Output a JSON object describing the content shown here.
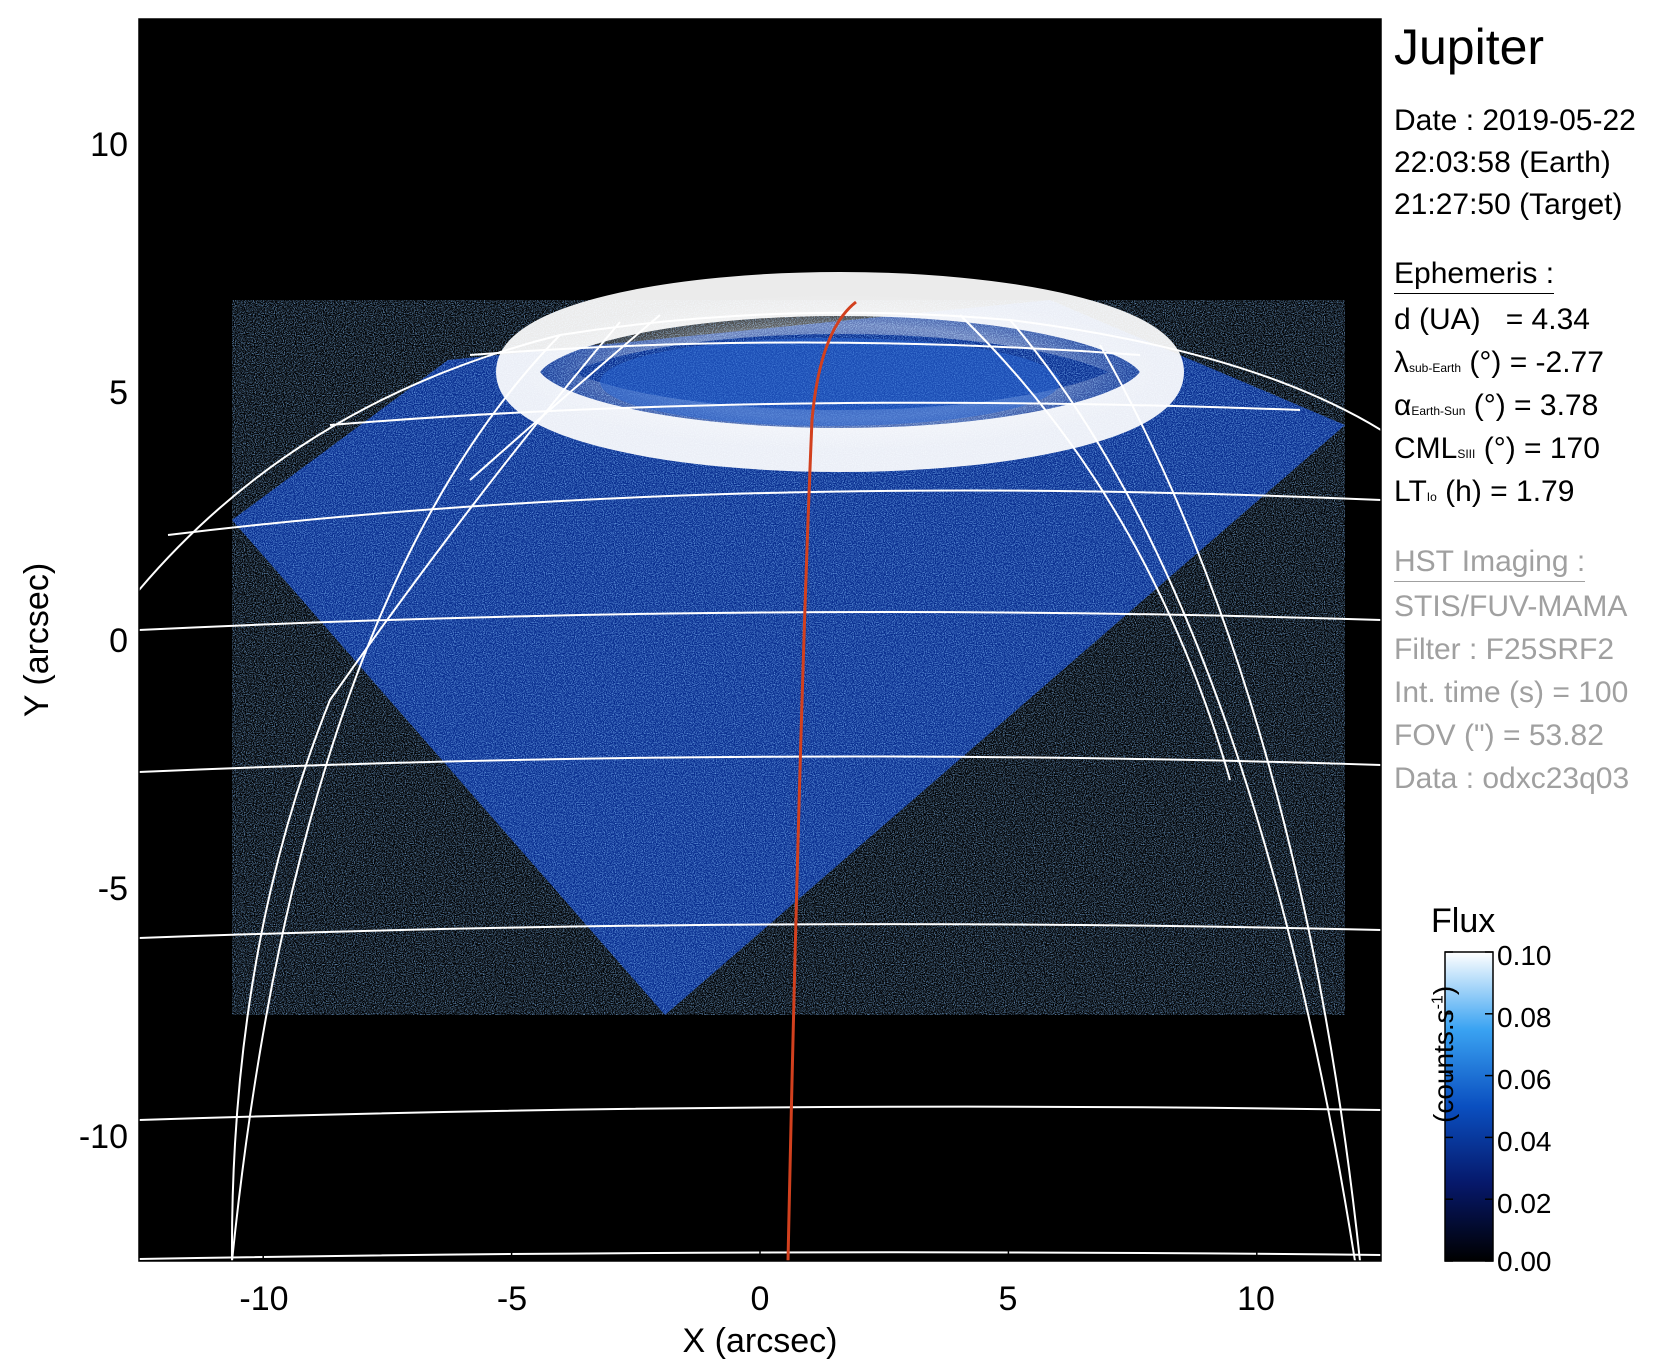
{
  "figure": {
    "target": "Jupiter",
    "date_line": "Date : 2019-05-22",
    "earth_time": "22:03:58 (Earth)",
    "target_time": "21:27:50 (Target)"
  },
  "ephemeris": {
    "heading": "Ephemeris :",
    "d": {
      "name": "d (UA)",
      "value": "= 4.34"
    },
    "lambda": {
      "symbol": "λ",
      "sub": "sub-Earth",
      "rest": "(°) = -2.77"
    },
    "alpha": {
      "symbol": "α",
      "sub": "Earth-Sun",
      "rest": "(°) = 3.78"
    },
    "cml": {
      "symbol": "CML",
      "sub": "SIII",
      "rest": "(°) = 170"
    },
    "lt": {
      "symbol": "LT",
      "sub": "Io",
      "rest": "(h) = 1.79"
    }
  },
  "imaging": {
    "heading": "HST Imaging :",
    "instrument": "STIS/FUV-MAMA",
    "filter": "Filter : F25SRF2",
    "int_time": "Int. time (s) = 100",
    "fov": "FOV (\") = 53.82",
    "data": "Data : odxc23q03"
  },
  "axes": {
    "xlabel": "X (arcsec)",
    "ylabel": "Y (arcsec)",
    "xlim": [
      -12.5,
      12.5
    ],
    "ylim": [
      -12.5,
      12.5
    ],
    "xticks": [
      -10,
      -5,
      0,
      5,
      10
    ],
    "yticks": [
      10,
      5,
      0,
      -5,
      -10
    ],
    "xtick_labels": [
      "-10",
      "-5",
      "0",
      "5",
      "10"
    ],
    "ytick_labels": [
      "10",
      "5",
      "0",
      "-5",
      "-10"
    ]
  },
  "colorbar": {
    "title": "Flux",
    "unit": "(counts.s",
    "unit_exp": "-1",
    "unit_close": ")",
    "range": [
      0.0,
      0.1
    ],
    "tick_labels": [
      "0.10",
      "0.08",
      "0.06",
      "0.04",
      "0.02",
      "0.00"
    ]
  },
  "colors": {
    "background": "#000000",
    "grid": "#ffffff",
    "track": "#d2401e",
    "emission_low": "#062a8a",
    "emission_high": "#ffffff"
  }
}
